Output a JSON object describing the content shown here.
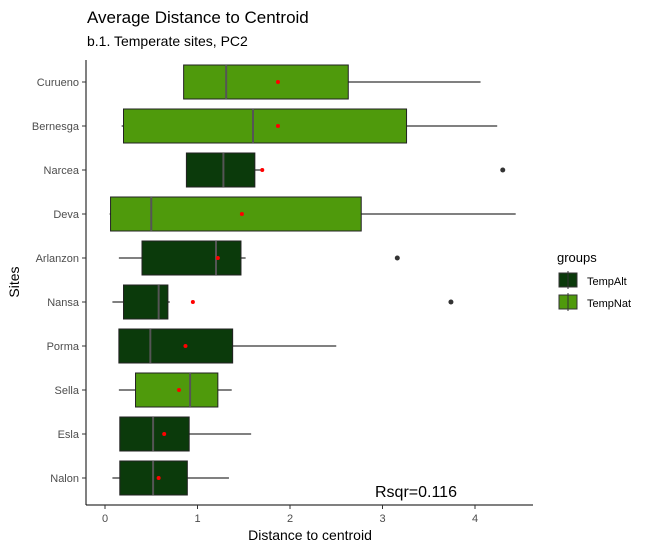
{
  "chart_data": {
    "type": "boxplot",
    "title": "Average Distance to Centroid",
    "subtitle": "b.1. Temperate sites, PC2",
    "xlabel": "Distance to centroid",
    "ylabel": "Sites",
    "xlim": [
      -0.25,
      4.65
    ],
    "x_ticks": [
      "0",
      "1",
      "2",
      "3",
      "4"
    ],
    "x_tick_values": [
      0,
      1,
      2,
      3,
      4
    ],
    "annotation": "Rsqr=0.116",
    "legend": {
      "title": "groups",
      "entries": [
        {
          "name": "TempAlt",
          "color": "#0b3a0b"
        },
        {
          "name": "TempNat",
          "color": "#4f9a0c"
        }
      ]
    },
    "categories": [
      "Curueno",
      "Bernesga",
      "Narcea",
      "Deva",
      "Arlanzon",
      "Nansa",
      "Porma",
      "Sella",
      "Esla",
      "Nalon"
    ],
    "boxes": [
      {
        "site": "Curueno",
        "group": "TempNat",
        "whisker_low": 0.85,
        "q1": 0.85,
        "median": 1.31,
        "q3": 2.63,
        "whisker_high": 4.06,
        "mean": 1.87,
        "outliers": []
      },
      {
        "site": "Bernesga",
        "group": "TempNat",
        "whisker_low": 0.18,
        "q1": 0.2,
        "median": 1.6,
        "q3": 3.26,
        "whisker_high": 4.24,
        "mean": 1.87,
        "outliers": []
      },
      {
        "site": "Narcea",
        "group": "TempAlt",
        "whisker_low": 0.88,
        "q1": 0.88,
        "median": 1.28,
        "q3": 1.62,
        "whisker_high": 1.7,
        "mean": 1.7,
        "outliers": [
          4.3
        ]
      },
      {
        "site": "Deva",
        "group": "TempNat",
        "whisker_low": 0.05,
        "q1": 0.06,
        "median": 0.5,
        "q3": 2.77,
        "whisker_high": 4.44,
        "mean": 1.48,
        "outliers": []
      },
      {
        "site": "Arlanzon",
        "group": "TempAlt",
        "whisker_low": 0.15,
        "q1": 0.4,
        "median": 1.2,
        "q3": 1.47,
        "whisker_high": 1.52,
        "mean": 1.22,
        "outliers": [
          3.16
        ]
      },
      {
        "site": "Nansa",
        "group": "TempAlt",
        "whisker_low": 0.08,
        "q1": 0.2,
        "median": 0.58,
        "q3": 0.68,
        "whisker_high": 0.7,
        "mean": 0.95,
        "outliers": [
          3.74
        ]
      },
      {
        "site": "Porma",
        "group": "TempAlt",
        "whisker_low": 0.15,
        "q1": 0.15,
        "median": 0.49,
        "q3": 1.38,
        "whisker_high": 2.5,
        "mean": 0.87,
        "outliers": []
      },
      {
        "site": "Sella",
        "group": "TempNat",
        "whisker_low": 0.15,
        "q1": 0.33,
        "median": 0.92,
        "q3": 1.22,
        "whisker_high": 1.37,
        "mean": 0.8,
        "outliers": []
      },
      {
        "site": "Esla",
        "group": "TempAlt",
        "whisker_low": 0.16,
        "q1": 0.16,
        "median": 0.52,
        "q3": 0.91,
        "whisker_high": 1.58,
        "mean": 0.64,
        "outliers": []
      },
      {
        "site": "Nalon",
        "group": "TempAlt",
        "whisker_low": 0.08,
        "q1": 0.16,
        "median": 0.52,
        "q3": 0.89,
        "whisker_high": 1.34,
        "mean": 0.58,
        "outliers": []
      }
    ],
    "mean_marker_color": "#ff0000",
    "outlier_color": "#333333"
  }
}
